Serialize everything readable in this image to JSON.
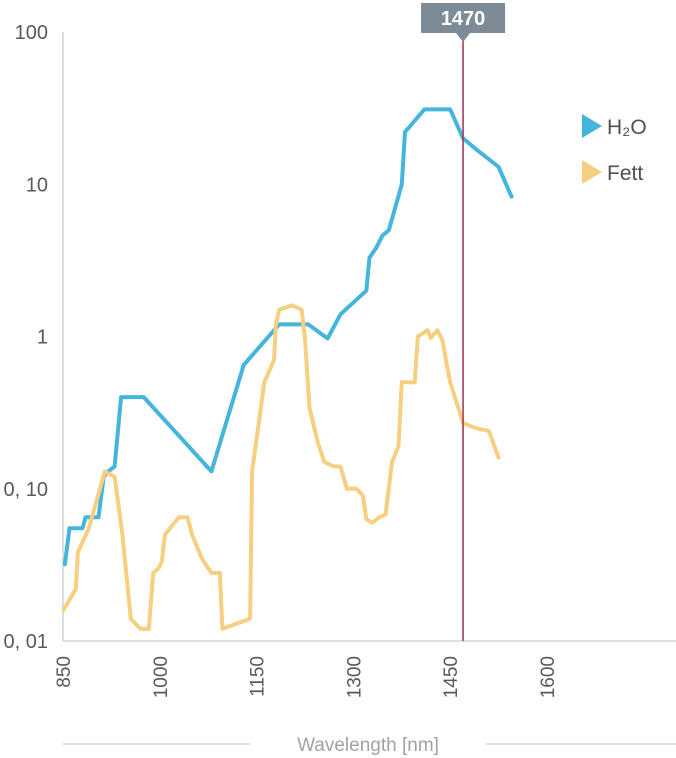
{
  "chart_data": {
    "type": "line",
    "xlabel": "Wavelength [nm]",
    "ylabel": "",
    "x_ticks": [
      "850",
      "1000",
      "1150",
      "1300",
      "1450",
      "1600"
    ],
    "y_ticks": [
      "100",
      "10",
      "1",
      "0, 10",
      "0, 01"
    ],
    "y_scale": "log",
    "ylim": [
      0.01,
      100
    ],
    "xlim": [
      850,
      1800
    ],
    "grid": false,
    "legend_position": "right",
    "marker": {
      "x": 1470,
      "label": "1470",
      "color": "#a83a5c"
    },
    "series": [
      {
        "name": "H₂O",
        "color": "#45b5dc",
        "points": [
          [
            853,
            0.032
          ],
          [
            860,
            0.055
          ],
          [
            880,
            0.055
          ],
          [
            885,
            0.065
          ],
          [
            905,
            0.065
          ],
          [
            913,
            0.12
          ],
          [
            920,
            0.13
          ],
          [
            930,
            0.14
          ],
          [
            940,
            0.4
          ],
          [
            975,
            0.4
          ],
          [
            1080,
            0.13
          ],
          [
            1130,
            0.65
          ],
          [
            1185,
            1.2
          ],
          [
            1230,
            1.2
          ],
          [
            1260,
            0.97
          ],
          [
            1280,
            1.4
          ],
          [
            1320,
            2.0
          ],
          [
            1325,
            3.3
          ],
          [
            1335,
            3.8
          ],
          [
            1345,
            4.6
          ],
          [
            1355,
            5.0
          ],
          [
            1375,
            10
          ],
          [
            1380,
            22
          ],
          [
            1410,
            31
          ],
          [
            1450,
            31
          ],
          [
            1470,
            20
          ],
          [
            1490,
            17
          ],
          [
            1525,
            13
          ],
          [
            1545,
            8.3
          ]
        ]
      },
      {
        "name": "Fett",
        "color": "#f6cf80",
        "points": [
          [
            851,
            0.016
          ],
          [
            870,
            0.022
          ],
          [
            873,
            0.038
          ],
          [
            890,
            0.055
          ],
          [
            910,
            0.11
          ],
          [
            915,
            0.13
          ],
          [
            930,
            0.12
          ],
          [
            942,
            0.05
          ],
          [
            955,
            0.014
          ],
          [
            970,
            0.012
          ],
          [
            983,
            0.012
          ],
          [
            990,
            0.028
          ],
          [
            998,
            0.03
          ],
          [
            1003,
            0.033
          ],
          [
            1008,
            0.05
          ],
          [
            1020,
            0.058
          ],
          [
            1030,
            0.065
          ],
          [
            1043,
            0.065
          ],
          [
            1050,
            0.05
          ],
          [
            1065,
            0.035
          ],
          [
            1080,
            0.028
          ],
          [
            1093,
            0.028
          ],
          [
            1097,
            0.012
          ],
          [
            1140,
            0.014
          ],
          [
            1143,
            0.13
          ],
          [
            1157,
            0.35
          ],
          [
            1162,
            0.5
          ],
          [
            1177,
            0.7
          ],
          [
            1180,
            1.2
          ],
          [
            1185,
            1.5
          ],
          [
            1205,
            1.6
          ],
          [
            1220,
            1.5
          ],
          [
            1225,
            0.96
          ],
          [
            1232,
            0.34
          ],
          [
            1245,
            0.2
          ],
          [
            1255,
            0.15
          ],
          [
            1270,
            0.14
          ],
          [
            1280,
            0.14
          ],
          [
            1290,
            0.1
          ],
          [
            1305,
            0.1
          ],
          [
            1315,
            0.09
          ],
          [
            1320,
            0.063
          ],
          [
            1330,
            0.06
          ],
          [
            1340,
            0.065
          ],
          [
            1350,
            0.068
          ],
          [
            1360,
            0.15
          ],
          [
            1370,
            0.19
          ],
          [
            1375,
            0.5
          ],
          [
            1385,
            0.5
          ],
          [
            1395,
            0.5
          ],
          [
            1400,
            1.0
          ],
          [
            1415,
            1.1
          ],
          [
            1420,
            0.98
          ],
          [
            1430,
            1.1
          ],
          [
            1438,
            0.95
          ],
          [
            1445,
            0.65
          ],
          [
            1450,
            0.5
          ],
          [
            1470,
            0.27
          ],
          [
            1490,
            0.25
          ],
          [
            1510,
            0.24
          ],
          [
            1525,
            0.16
          ]
        ]
      }
    ]
  }
}
